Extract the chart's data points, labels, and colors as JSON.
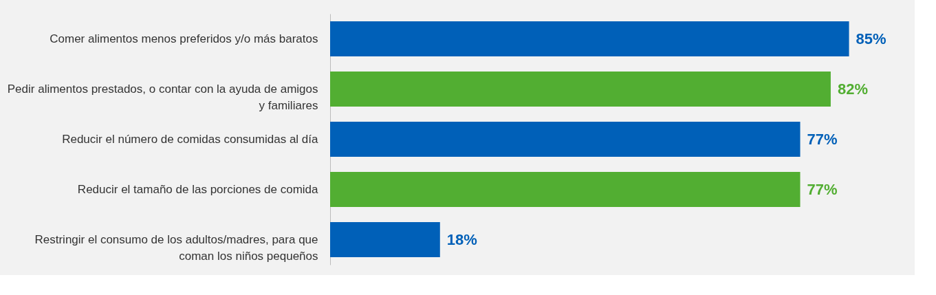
{
  "chart_data": {
    "type": "bar",
    "orientation": "horizontal",
    "value_labels": [
      "85%",
      "82%",
      "77%",
      "77%",
      "18%"
    ],
    "categories": [
      "Comer alimentos menos preferidos y/o más baratos",
      "Pedir alimentos prestados, o contar con la ayuda de amigos y familiares",
      "Reducir el número de comidas consumidas al día",
      "Reducir el tamaño de las porciones de comida",
      "Restringir el consumo de  los adultos/madres, para que coman los niños pequeños"
    ],
    "values": [
      85,
      82,
      77,
      77,
      18
    ],
    "colors": [
      "#0060b8",
      "#52ae32",
      "#0060b8",
      "#52ae32",
      "#0060b8"
    ],
    "grid": false
  }
}
